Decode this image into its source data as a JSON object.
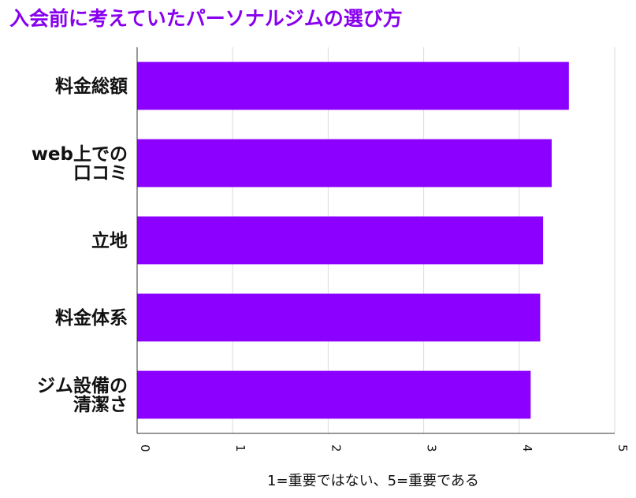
{
  "chart_data": {
    "type": "bar",
    "orientation": "horizontal",
    "title": "入会前に考えていたパーソナルジムの選び方",
    "title_color": "#8800ee",
    "bar_color": "#8b00ff",
    "categories": [
      [
        "料金総額"
      ],
      [
        "web上での",
        "口コミ"
      ],
      [
        "立地"
      ],
      [
        "料金体系"
      ],
      [
        "ジム設備の",
        "清潔さ"
      ]
    ],
    "values": [
      4.52,
      4.34,
      4.25,
      4.22,
      4.12
    ],
    "xlabel": "1=重要ではない、5=重要である",
    "xlim": [
      0,
      5
    ],
    "xticks": [
      "0",
      "1",
      "2",
      "3",
      "4",
      "5"
    ],
    "grid": true,
    "legend": "none"
  }
}
